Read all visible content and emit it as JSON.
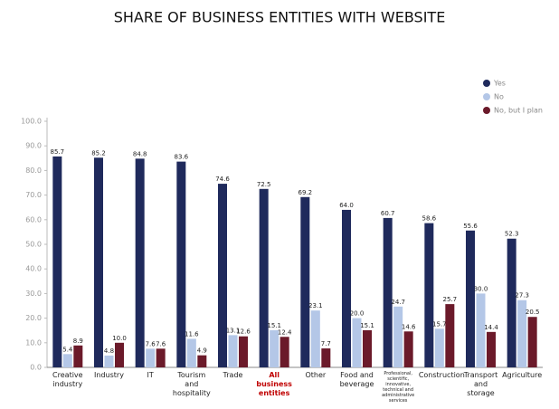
{
  "chart_data": {
    "type": "bar",
    "title": "SHARE OF BUSINESS ENTITIES WITH WEBSITE",
    "categories": [
      "Creative industry",
      "Industry",
      "IT",
      "Tourism and hospitality",
      "Trade",
      "All business entities",
      "Other",
      "Food and beverage",
      "Professional, scientific, innovative, technical and administrative services",
      "Construction",
      "Transport and storage",
      "Agriculture"
    ],
    "highlight_category": 5,
    "highlight_color": "#c00000",
    "series": [
      {
        "name": "Yes",
        "color": "#1f2a5c",
        "values": [
          85.7,
          85.2,
          84.8,
          83.6,
          74.6,
          72.5,
          69.2,
          64.0,
          60.7,
          58.6,
          55.6,
          52.3
        ],
        "value_labels": [
          "85.7",
          "85.2",
          "84.8",
          "83.6",
          "74.6",
          "72.5",
          "69.2",
          "64.0",
          "60.7",
          "58.6",
          "55.6",
          "52.3"
        ]
      },
      {
        "name": "No",
        "color": "#b4c7e7",
        "values": [
          5.4,
          4.8,
          7.6,
          11.6,
          13.1,
          15.1,
          23.1,
          20.0,
          24.7,
          15.7,
          30.0,
          27.3
        ],
        "value_labels": [
          "5.4",
          "4.8",
          "7.6",
          "11.6",
          "13.1",
          "15.1",
          "23.1",
          "20.0",
          "24.7",
          "15.7",
          "30.0",
          "27.3"
        ]
      },
      {
        "name": "No, but I plan",
        "color": "#6b1a2a",
        "values": [
          8.9,
          10.0,
          7.6,
          4.9,
          12.6,
          12.4,
          7.7,
          15.1,
          14.6,
          25.7,
          14.4,
          20.5
        ],
        "value_labels": [
          "8.9",
          "10.0",
          "7.6",
          "4.9",
          "12.6",
          "12.4",
          "7.7",
          "15.1",
          "14.6",
          "25.7",
          "14.4",
          "20.5"
        ]
      }
    ],
    "ylim": [
      0,
      100
    ],
    "yticks": [
      {
        "value": 0,
        "label": "0.0"
      },
      {
        "value": 10,
        "label": "10.0"
      },
      {
        "value": 20,
        "label": "20.0"
      },
      {
        "value": 30,
        "label": "30.0"
      },
      {
        "value": 40,
        "label": "40.0"
      },
      {
        "value": 50,
        "label": "50.0"
      },
      {
        "value": 60,
        "label": "60.0"
      },
      {
        "value": 70,
        "label": "70.0"
      },
      {
        "value": 80,
        "label": "80.0"
      },
      {
        "value": 90,
        "label": "90.0"
      },
      {
        "value": 100,
        "label": "100.0"
      }
    ],
    "grid": false,
    "legend": "top-right"
  }
}
